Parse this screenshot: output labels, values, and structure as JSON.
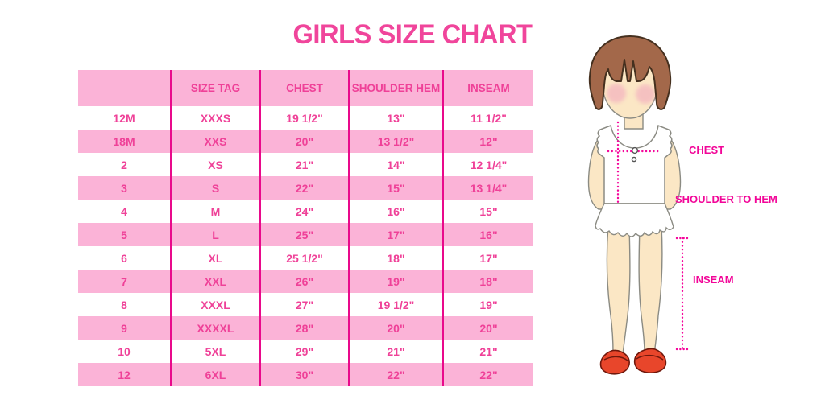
{
  "title": "GIRLS SIZE CHART",
  "table": {
    "headers": [
      "",
      "SIZE TAG",
      "CHEST",
      "SHOULDER HEM",
      "INSEAM"
    ],
    "rows": [
      [
        "12M",
        "XXXS",
        "19 1/2\"",
        "13\"",
        "11 1/2\""
      ],
      [
        "18M",
        "XXS",
        "20\"",
        "13 1/2\"",
        "12\""
      ],
      [
        "2",
        "XS",
        "21\"",
        "14\"",
        "12 1/4\""
      ],
      [
        "3",
        "S",
        "22\"",
        "15\"",
        "13 1/4\""
      ],
      [
        "4",
        "M",
        "24\"",
        "16\"",
        "15\""
      ],
      [
        "5",
        "L",
        "25\"",
        "17\"",
        "16\""
      ],
      [
        "6",
        "XL",
        "25 1/2\"",
        "18\"",
        "17\""
      ],
      [
        "7",
        "XXL",
        "26\"",
        "19\"",
        "18\""
      ],
      [
        "8",
        "XXXL",
        "27\"",
        "19 1/2\"",
        "19\""
      ],
      [
        "9",
        "XXXXL",
        "28\"",
        "20\"",
        "20\""
      ],
      [
        "10",
        "5XL",
        "29\"",
        "21\"",
        "21\""
      ],
      [
        "12",
        "6XL",
        "30\"",
        "22\"",
        "22\""
      ]
    ]
  },
  "diagram": {
    "labels": {
      "chest": "CHEST",
      "shoulder_to_hem": "SHOULDER TO HEM",
      "inseam": "INSEAM"
    }
  },
  "colors": {
    "stripe_pink": "#FBB3D7",
    "text_pink": "#EF4198",
    "divider_magenta": "#E9098B",
    "label_magenta": "#F20698",
    "hair_brown": "#A3684A",
    "skin": "#FBE7C5",
    "shoe_red": "#E8462B"
  }
}
